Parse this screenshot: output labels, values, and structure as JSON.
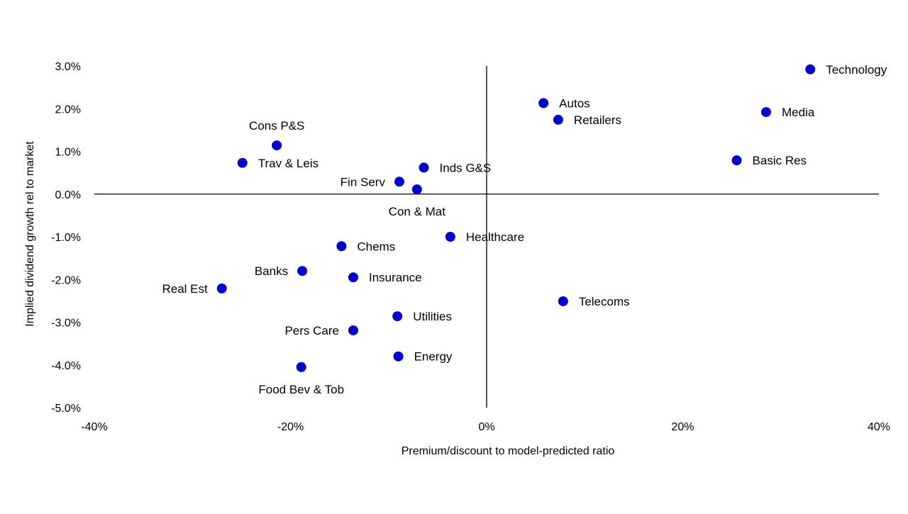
{
  "chart_data": {
    "type": "scatter",
    "title": "",
    "xlabel": "Premium/discount to model-predicted ratio",
    "ylabel": "Implied dividend growth rel to market",
    "xlim": [
      -40,
      40
    ],
    "ylim": [
      -5.0,
      3.0
    ],
    "x_unit": "%",
    "y_unit": "%",
    "x_ticks": [
      -40,
      -20,
      0,
      20,
      40
    ],
    "x_tick_labels": [
      "-40%",
      "-20%",
      "0%",
      "20%",
      "40%"
    ],
    "y_ticks": [
      3,
      2,
      1,
      0,
      -1,
      -2,
      -3,
      -4,
      -5
    ],
    "y_tick_labels": [
      "3.0%",
      "2.0%",
      "1.0%",
      "0.0%",
      "-1.0%",
      "-2.0%",
      "-3.0%",
      "-4.0%",
      "-5.0%"
    ],
    "grid": false,
    "legend": "none",
    "marker_color": "#0000CC",
    "points": [
      {
        "label": "Technology",
        "x": 33.0,
        "y": 2.92,
        "label_side": "right"
      },
      {
        "label": "Media",
        "x": 28.5,
        "y": 1.92,
        "label_side": "right"
      },
      {
        "label": "Basic Res",
        "x": 25.5,
        "y": 0.79,
        "label_side": "right"
      },
      {
        "label": "Autos",
        "x": 5.8,
        "y": 2.13,
        "label_side": "right"
      },
      {
        "label": "Retailers",
        "x": 7.3,
        "y": 1.74,
        "label_side": "right"
      },
      {
        "label": "Telecoms",
        "x": 7.8,
        "y": -2.51,
        "label_side": "right"
      },
      {
        "label": "Healthcare",
        "x": -3.7,
        "y": -1.0,
        "label_side": "right"
      },
      {
        "label": "Inds G&S",
        "x": -6.4,
        "y": 0.62,
        "label_side": "right"
      },
      {
        "label": "Con & Mat",
        "x": -7.1,
        "y": 0.11,
        "label_side": "below"
      },
      {
        "label": "Fin Serv",
        "x": -8.9,
        "y": 0.29,
        "label_side": "left"
      },
      {
        "label": "Cons P&S",
        "x": -21.4,
        "y": 1.14,
        "label_side": "above"
      },
      {
        "label": "Trav & Leis",
        "x": -24.9,
        "y": 0.73,
        "label_side": "right"
      },
      {
        "label": "Chems",
        "x": -14.8,
        "y": -1.22,
        "label_side": "right"
      },
      {
        "label": "Banks",
        "x": -18.8,
        "y": -1.8,
        "label_side": "left"
      },
      {
        "label": "Insurance",
        "x": -13.6,
        "y": -1.95,
        "label_side": "right"
      },
      {
        "label": "Real Est",
        "x": -27.0,
        "y": -2.21,
        "label_side": "left"
      },
      {
        "label": "Utilities",
        "x": -9.1,
        "y": -2.86,
        "label_side": "right"
      },
      {
        "label": "Pers Care",
        "x": -13.6,
        "y": -3.19,
        "label_side": "left"
      },
      {
        "label": "Energy",
        "x": -9.0,
        "y": -3.8,
        "label_side": "right"
      },
      {
        "label": "Food Bev & Tob",
        "x": -18.9,
        "y": -4.05,
        "label_side": "below"
      }
    ]
  }
}
